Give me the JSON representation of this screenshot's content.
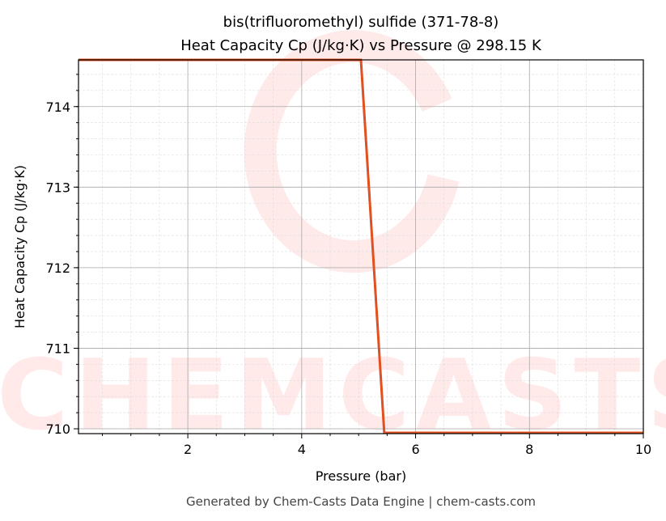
{
  "chart_data": {
    "type": "line",
    "title": "bis(trifluoromethyl) sulfide (371-78-8)",
    "subtitle": "Heat Capacity Cp (J/kg·K) vs Pressure @ 298.15 K",
    "xlabel": "Pressure (bar)",
    "ylabel": "Heat Capacity Cp (J/kg·K)",
    "xlim": [
      0.08,
      10
    ],
    "ylim": [
      709.94,
      714.58
    ],
    "xticks": [
      2,
      4,
      6,
      8,
      10
    ],
    "yticks": [
      710,
      711,
      712,
      713,
      714
    ],
    "grid": true,
    "series": [
      {
        "color": "#e05020",
        "x": [
          0.08,
          5.04,
          5.45,
          10
        ],
        "y": [
          714.58,
          714.58,
          709.95,
          709.95
        ]
      }
    ]
  },
  "watermark": "CHEMCASTS",
  "footer": "Generated by Chem-Casts Data Engine | chem-casts.com"
}
